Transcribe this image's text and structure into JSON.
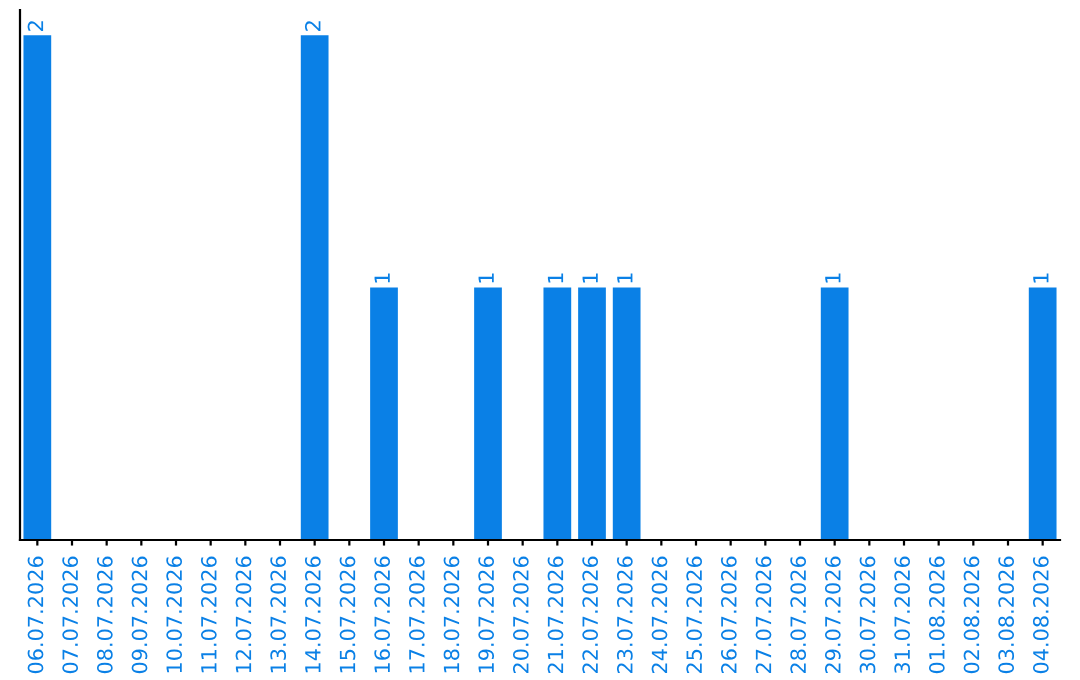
{
  "chart_data": {
    "type": "bar",
    "categories": [
      "06.07.2026",
      "07.07.2026",
      "08.07.2026",
      "09.07.2026",
      "10.07.2026",
      "11.07.2026",
      "12.07.2026",
      "13.07.2026",
      "14.07.2026",
      "15.07.2026",
      "16.07.2026",
      "17.07.2026",
      "18.07.2026",
      "19.07.2026",
      "20.07.2026",
      "21.07.2026",
      "22.07.2026",
      "23.07.2026",
      "24.07.2026",
      "25.07.2026",
      "26.07.2026",
      "27.07.2026",
      "28.07.2026",
      "29.07.2026",
      "30.07.2026",
      "31.07.2026",
      "01.08.2026",
      "02.08.2026",
      "03.08.2026",
      "04.08.2026"
    ],
    "values": [
      2,
      0,
      0,
      0,
      0,
      0,
      0,
      0,
      2,
      0,
      1,
      0,
      0,
      1,
      0,
      1,
      1,
      1,
      0,
      0,
      0,
      0,
      0,
      1,
      0,
      0,
      0,
      0,
      0,
      1
    ],
    "value_labels": [
      "2",
      null,
      null,
      null,
      null,
      null,
      null,
      null,
      "2",
      null,
      "1",
      null,
      null,
      "1",
      null,
      "1",
      "1",
      "1",
      null,
      null,
      null,
      null,
      null,
      "1",
      null,
      null,
      null,
      null,
      null,
      "1"
    ],
    "color": "#0a80e6",
    "ylim": [
      0,
      2.1
    ],
    "tick_labels": "x",
    "grid": false,
    "legend": false
  }
}
